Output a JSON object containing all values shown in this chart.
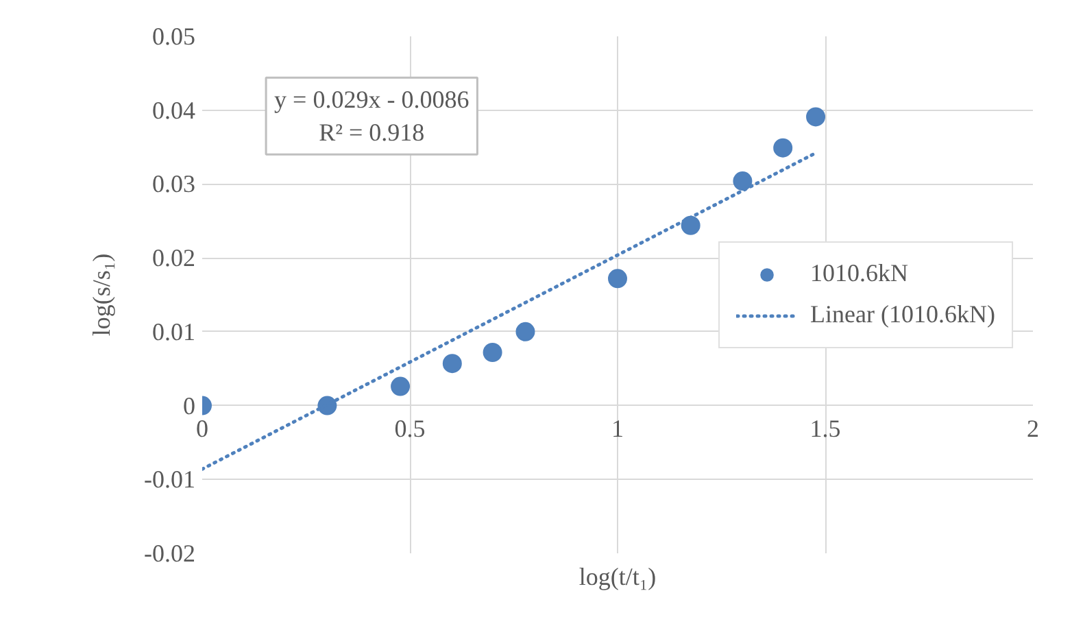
{
  "chart_data": {
    "type": "scatter",
    "xlabel": "log(t/t₁)",
    "ylabel": "log(s/s₁)",
    "annotations": [
      "y = 0.029x - 0.0086",
      "R² = 0.918"
    ],
    "xlim": [
      0,
      2
    ],
    "ylim": [
      -0.02,
      0.05
    ],
    "xticks": [
      0,
      0.5,
      1,
      1.5,
      2
    ],
    "yticks": [
      -0.02,
      -0.01,
      0,
      0.01,
      0.02,
      0.03,
      0.04,
      0.05
    ],
    "grid": true,
    "legend": "right",
    "marker": "circle",
    "series": [
      {
        "name": "1010.6kN",
        "color": "#4f81bd",
        "x": [
          0,
          0.301,
          0.477,
          0.602,
          0.699,
          0.778,
          1,
          1.176,
          1.301,
          1.398,
          1.477
        ],
        "values": [
          0,
          0,
          0.0026,
          0.0057,
          0.0072,
          0.01,
          0.0172,
          0.0244,
          0.0304,
          0.0349,
          0.0391
        ]
      },
      {
        "name": "Linear (1010.6kN)",
        "type": "line",
        "color": "#4f81bd",
        "line_style": "dotted",
        "marker": "none",
        "x": [
          0,
          1.477
        ],
        "values": [
          -0.0086,
          0.0342
        ]
      }
    ]
  }
}
